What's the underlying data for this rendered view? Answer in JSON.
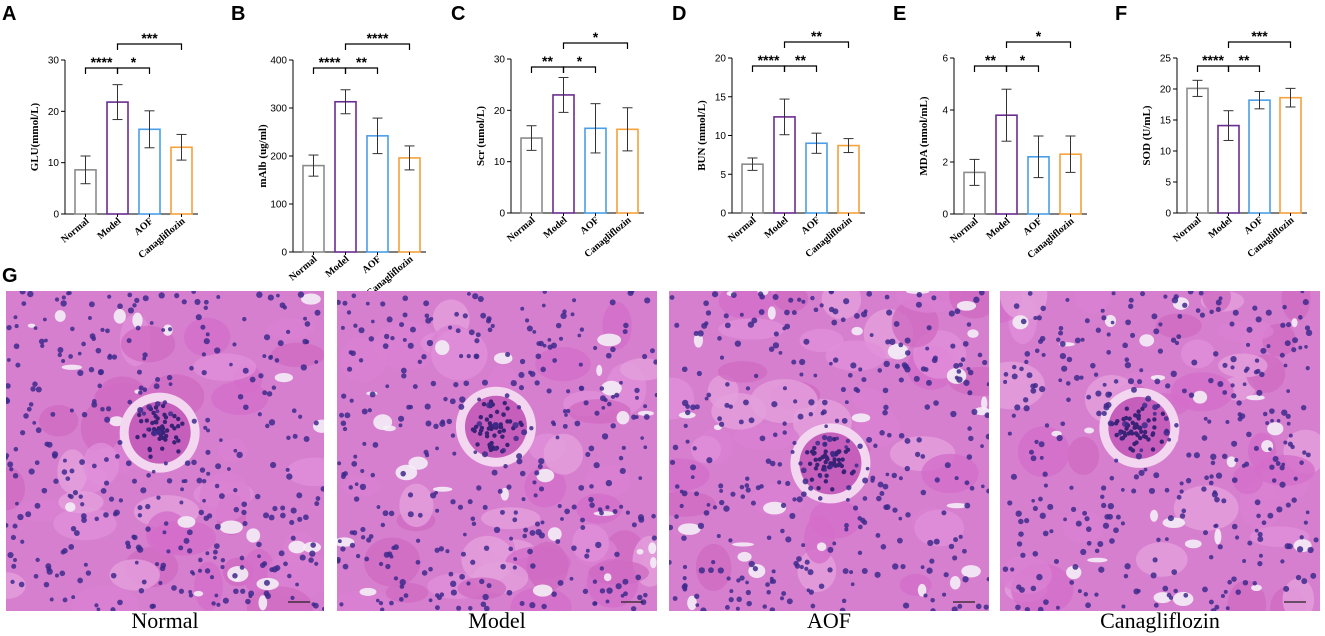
{
  "panel_letters": [
    "A",
    "B",
    "C",
    "D",
    "E",
    "F",
    "G"
  ],
  "colors": {
    "Normal": "#8c8c8c",
    "Model": "#6a2c91",
    "AOF": "#4a9ee8",
    "Canagliflozin": "#f4a23c",
    "tissue_bg": "#d77fcf",
    "nucleus": "#3d2a8c",
    "lumen": "#f4eef6"
  },
  "chart_data": [
    {
      "type": "bar",
      "title": "",
      "ylabel": "GLU(mmol/L)",
      "xlabel": "",
      "categories": [
        "Normal",
        "Model",
        "AOF",
        "Canagliflozin"
      ],
      "values": [
        8.6,
        21.8,
        16.5,
        13.0
      ],
      "errors": [
        2.7,
        3.4,
        3.6,
        2.5
      ],
      "ylim": [
        0,
        30
      ],
      "yticks": [
        0,
        10,
        20,
        30
      ],
      "significance": [
        {
          "from": 0,
          "to": 1,
          "label": "****",
          "level": 1
        },
        {
          "from": 1,
          "to": 2,
          "label": "*",
          "level": 1
        },
        {
          "from": 1,
          "to": 3,
          "label": "***",
          "level": 2
        }
      ]
    },
    {
      "type": "bar",
      "title": "",
      "ylabel": "mAlb (ug/ml)",
      "xlabel": "",
      "categories": [
        "Normal",
        "Model",
        "AOF",
        "Canagliflozin"
      ],
      "values": [
        180,
        313,
        242,
        196
      ],
      "errors": [
        22,
        25,
        37,
        25
      ],
      "ylim": [
        0,
        400
      ],
      "yticks": [
        0,
        100,
        200,
        300,
        400
      ],
      "significance": [
        {
          "from": 0,
          "to": 1,
          "label": "****",
          "level": 1
        },
        {
          "from": 1,
          "to": 2,
          "label": "**",
          "level": 1
        },
        {
          "from": 1,
          "to": 3,
          "label": "****",
          "level": 2
        }
      ]
    },
    {
      "type": "bar",
      "title": "",
      "ylabel": "Scr (umol/L)",
      "xlabel": "",
      "categories": [
        "Normal",
        "Model",
        "AOF",
        "Canagliflozin"
      ],
      "values": [
        14.6,
        23.0,
        16.5,
        16.3
      ],
      "errors": [
        2.4,
        3.4,
        4.8,
        4.2
      ],
      "ylim": [
        0,
        30
      ],
      "yticks": [
        0,
        10,
        20,
        30
      ],
      "significance": [
        {
          "from": 0,
          "to": 1,
          "label": "**",
          "level": 1
        },
        {
          "from": 1,
          "to": 2,
          "label": "*",
          "level": 1
        },
        {
          "from": 1,
          "to": 3,
          "label": "*",
          "level": 2
        }
      ]
    },
    {
      "type": "bar",
      "title": "",
      "ylabel": "BUN (mmol/L)",
      "xlabel": "",
      "categories": [
        "Normal",
        "Model",
        "AOF",
        "Canagliflozin"
      ],
      "values": [
        6.3,
        12.4,
        9.0,
        8.7
      ],
      "errors": [
        0.8,
        2.3,
        1.3,
        0.9
      ],
      "ylim": [
        0,
        20
      ],
      "yticks": [
        0,
        5,
        10,
        15,
        20
      ],
      "significance": [
        {
          "from": 0,
          "to": 1,
          "label": "****",
          "level": 1
        },
        {
          "from": 1,
          "to": 2,
          "label": "**",
          "level": 1
        },
        {
          "from": 1,
          "to": 3,
          "label": "**",
          "level": 2
        }
      ]
    },
    {
      "type": "bar",
      "title": "",
      "ylabel": "MDA (nmol/mL)",
      "xlabel": "",
      "categories": [
        "Normal",
        "Model",
        "AOF",
        "Canagliflozin"
      ],
      "values": [
        1.6,
        3.8,
        2.2,
        2.3
      ],
      "errors": [
        0.5,
        1.0,
        0.8,
        0.7
      ],
      "ylim": [
        0,
        6
      ],
      "yticks": [
        0,
        2,
        4,
        6
      ],
      "significance": [
        {
          "from": 0,
          "to": 1,
          "label": "**",
          "level": 1
        },
        {
          "from": 1,
          "to": 2,
          "label": "*",
          "level": 1
        },
        {
          "from": 1,
          "to": 3,
          "label": "*",
          "level": 2
        }
      ]
    },
    {
      "type": "bar",
      "title": "",
      "ylabel": "SOD (U/mL)",
      "xlabel": "",
      "categories": [
        "Normal",
        "Model",
        "AOF",
        "Canagliflozin"
      ],
      "values": [
        20.1,
        14.1,
        18.2,
        18.6
      ],
      "errors": [
        1.3,
        2.4,
        1.4,
        1.5
      ],
      "ylim": [
        0,
        25
      ],
      "yticks": [
        0,
        5,
        10,
        15,
        20,
        25
      ],
      "significance": [
        {
          "from": 0,
          "to": 1,
          "label": "****",
          "level": 1
        },
        {
          "from": 1,
          "to": 2,
          "label": "**",
          "level": 1
        },
        {
          "from": 1,
          "to": 3,
          "label": "***",
          "level": 2
        }
      ]
    }
  ],
  "histology": {
    "captions": [
      "Normal",
      "Model",
      "AOF",
      "Canagliflozin"
    ]
  }
}
